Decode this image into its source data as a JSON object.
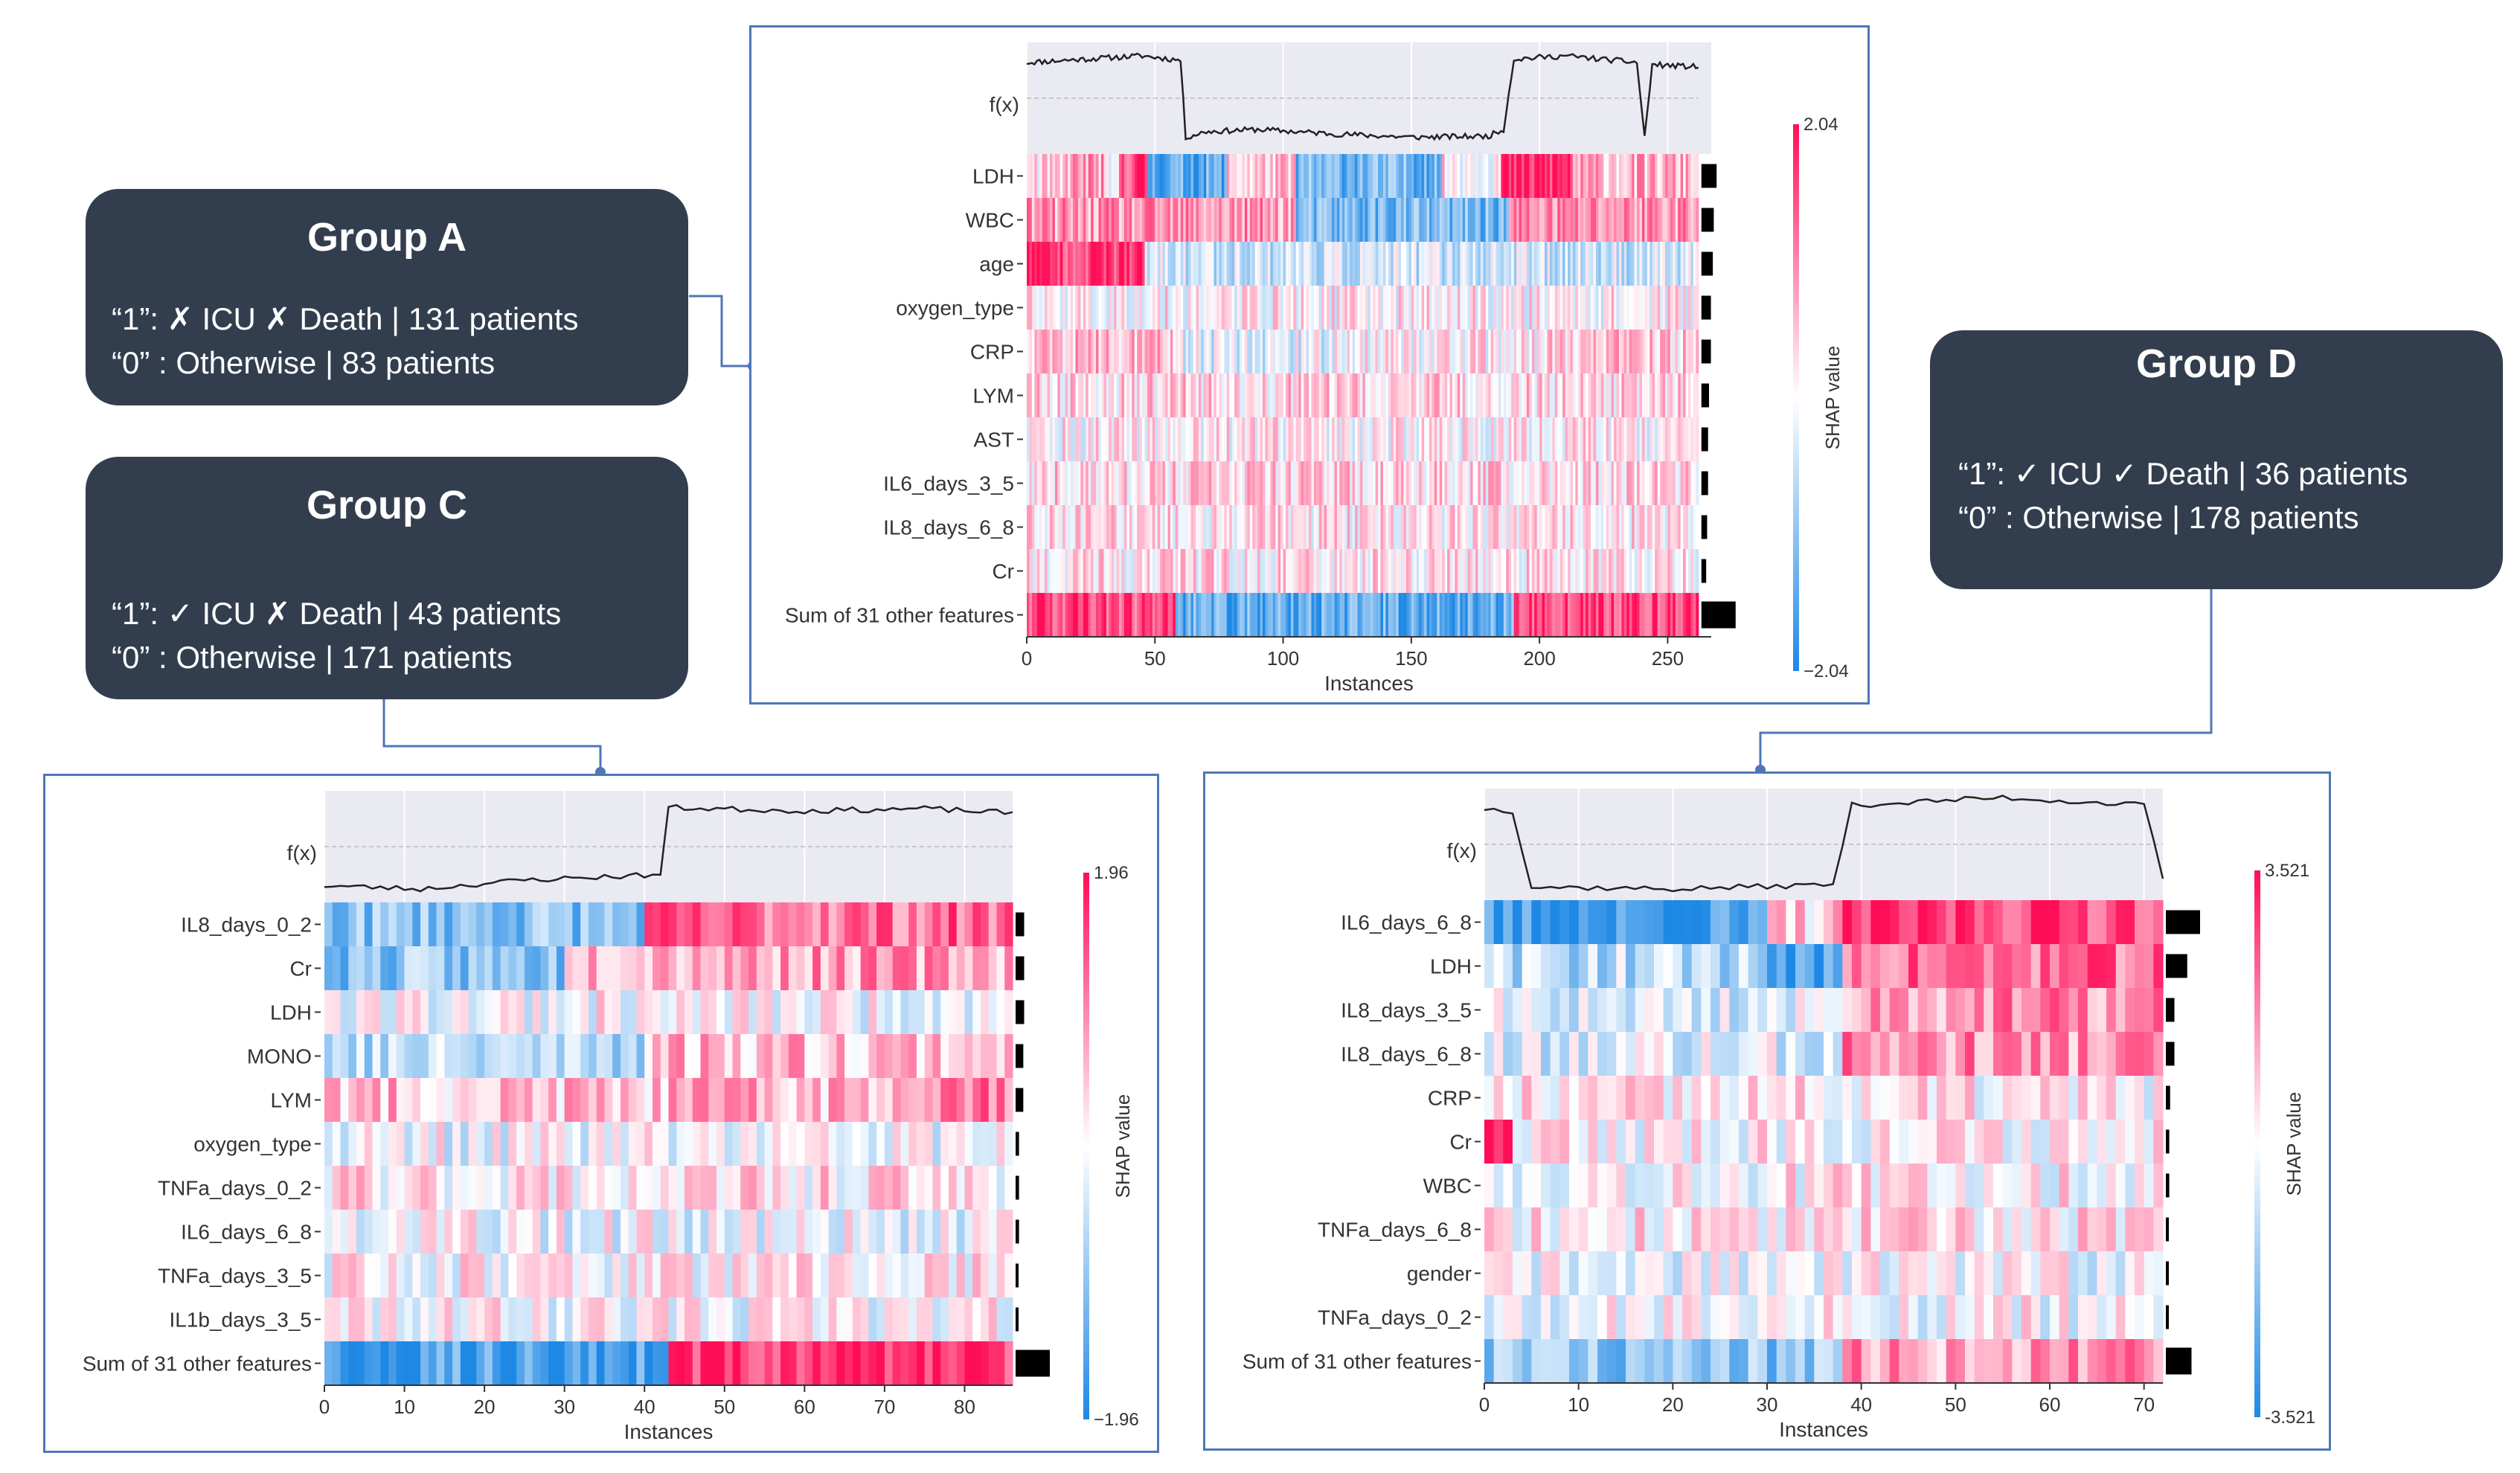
{
  "groups": {
    "a": {
      "title": "Group A",
      "line1": "“1”: ✗ ICU ✗ Death | 131 patients",
      "line2": "“0” : Otherwise | 83 patients"
    },
    "c": {
      "title": "Group C",
      "line1": "“1”: ✓ ICU ✗ Death | 43 patients",
      "line2": "“0” : Otherwise | 171 patients"
    },
    "d": {
      "title": "Group D",
      "line1": "“1”: ✓ ICU ✓ Death | 36 patients",
      "line2": "“0” : Otherwise | 178 patients"
    }
  },
  "colors": {
    "card_bg": "#323e4e",
    "border": "#4f76b7",
    "pos": "#ff0d57",
    "neg": "#1e88e5"
  },
  "chart_data": [
    {
      "id": "group-a-heatmap",
      "type": "heatmap",
      "fx_label": "f(x)",
      "features": [
        "LDH",
        "WBC",
        "age",
        "oxygen_type",
        "CRP",
        "LYM",
        "AST",
        "IL6_days_3_5",
        "IL8_days_6_8",
        "Cr",
        "Sum of 31 other features"
      ],
      "importance": [
        0.16,
        0.13,
        0.12,
        0.1,
        0.1,
        0.08,
        0.07,
        0.07,
        0.06,
        0.05,
        0.36
      ],
      "n_instances": 262,
      "xticks": [
        0,
        50,
        100,
        150,
        200,
        250
      ],
      "xlabel": "Instances",
      "colorbar": {
        "max_label": "2.04",
        "min_label": "−2.04",
        "label": "SHAP value",
        "max": 2.04,
        "min": -2.04
      },
      "fx_profile": [
        [
          0,
          0.82
        ],
        [
          45,
          0.88
        ],
        [
          60,
          0.84
        ],
        [
          62,
          0.15
        ],
        [
          70,
          0.2
        ],
        [
          90,
          0.22
        ],
        [
          120,
          0.18
        ],
        [
          150,
          0.15
        ],
        [
          180,
          0.16
        ],
        [
          186,
          0.22
        ],
        [
          190,
          0.85
        ],
        [
          210,
          0.88
        ],
        [
          238,
          0.82
        ],
        [
          241,
          0.15
        ],
        [
          244,
          0.8
        ],
        [
          262,
          0.78
        ]
      ],
      "seed": 11,
      "row_patterns": [
        [
          [
            0,
            15,
            0.1
          ],
          [
            15,
            30,
            0.4
          ],
          [
            30,
            36,
            -0.2
          ],
          [
            36,
            47,
            0.8
          ],
          [
            47,
            78,
            -0.7
          ],
          [
            78,
            105,
            0.2
          ],
          [
            105,
            162,
            -0.6
          ],
          [
            162,
            185,
            0.1
          ],
          [
            185,
            213,
            0.85
          ],
          [
            213,
            262,
            0.3
          ]
        ],
        [
          [
            0,
            48,
            0.4
          ],
          [
            48,
            105,
            0.4
          ],
          [
            105,
            188,
            -0.6
          ],
          [
            188,
            262,
            0.45
          ]
        ],
        [
          [
            0,
            46,
            0.85
          ],
          [
            46,
            262,
            -0.2
          ]
        ],
        [
          [
            0,
            262,
            0.05
          ]
        ],
        [
          [
            0,
            60,
            0.25
          ],
          [
            60,
            120,
            -0.1
          ],
          [
            120,
            200,
            0.05
          ],
          [
            200,
            262,
            0.2
          ]
        ],
        [
          [
            0,
            262,
            0.15
          ]
        ],
        [
          [
            0,
            262,
            0.05
          ]
        ],
        [
          [
            0,
            262,
            0.15
          ]
        ],
        [
          [
            0,
            262,
            0.1
          ]
        ],
        [
          [
            0,
            262,
            0.1
          ]
        ],
        [
          [
            0,
            58,
            0.75
          ],
          [
            58,
            190,
            -0.7
          ],
          [
            190,
            262,
            0.8
          ]
        ]
      ]
    },
    {
      "id": "group-c-heatmap",
      "type": "heatmap",
      "fx_label": "f(x)",
      "features": [
        "IL8_days_0_2",
        "Cr",
        "LDH",
        "MONO",
        "LYM",
        "oxygen_type",
        "TNFa_days_0_2",
        "IL6_days_6_8",
        "TNFa_days_3_5",
        "IL1b_days_3_5",
        "Sum of 31 other features"
      ],
      "importance": [
        0.1,
        0.1,
        0.1,
        0.09,
        0.09,
        0.04,
        0.04,
        0.04,
        0.03,
        0.03,
        0.4
      ],
      "n_instances": 86,
      "xticks": [
        0,
        10,
        20,
        30,
        40,
        50,
        60,
        70,
        80
      ],
      "xlabel": "Instances",
      "colorbar": {
        "max_label": "1.96",
        "min_label": "−1.96",
        "label": "SHAP value",
        "max": 1.96,
        "min": -1.96
      },
      "fx_profile": [
        [
          0,
          0.15
        ],
        [
          12,
          0.12
        ],
        [
          25,
          0.2
        ],
        [
          42,
          0.25
        ],
        [
          43,
          0.85
        ],
        [
          60,
          0.82
        ],
        [
          75,
          0.84
        ],
        [
          86,
          0.8
        ]
      ],
      "seed": 23,
      "row_patterns": [
        [
          [
            0,
            40,
            -0.5
          ],
          [
            40,
            86,
            0.6
          ]
        ],
        [
          [
            0,
            30,
            -0.5
          ],
          [
            30,
            86,
            0.4
          ]
        ],
        [
          [
            0,
            86,
            0.0
          ]
        ],
        [
          [
            0,
            40,
            -0.3
          ],
          [
            40,
            86,
            0.3
          ]
        ],
        [
          [
            0,
            45,
            0.25
          ],
          [
            45,
            72,
            0.3
          ],
          [
            72,
            86,
            0.6
          ]
        ],
        [
          [
            0,
            86,
            -0.05
          ]
        ],
        [
          [
            0,
            86,
            0.1
          ]
        ],
        [
          [
            0,
            86,
            -0.05
          ]
        ],
        [
          [
            0,
            86,
            0.05
          ]
        ],
        [
          [
            0,
            86,
            0.0
          ]
        ],
        [
          [
            0,
            43,
            -0.8
          ],
          [
            43,
            86,
            0.85
          ]
        ]
      ]
    },
    {
      "id": "group-d-heatmap",
      "type": "heatmap",
      "fx_label": "f(x)",
      "features": [
        "IL6_days_6_8",
        "LDH",
        "IL8_days_3_5",
        "IL8_days_6_8",
        "CRP",
        "Cr",
        "WBC",
        "TNFa_days_6_8",
        "gender",
        "TNFa_days_0_2",
        "Sum of 31 other features"
      ],
      "importance": [
        0.4,
        0.25,
        0.1,
        0.1,
        0.05,
        0.04,
        0.04,
        0.03,
        0.03,
        0.03,
        0.3
      ],
      "n_instances": 72,
      "xticks": [
        0,
        10,
        20,
        30,
        40,
        50,
        60,
        70
      ],
      "xlabel": "Instances",
      "colorbar": {
        "max_label": "3.521",
        "min_label": "-3.521",
        "label": "SHAP value",
        "max": 3.521,
        "min": -3.521
      },
      "fx_profile": [
        [
          0,
          0.82
        ],
        [
          3,
          0.8
        ],
        [
          5,
          0.12
        ],
        [
          20,
          0.1
        ],
        [
          37,
          0.14
        ],
        [
          39,
          0.85
        ],
        [
          55,
          0.92
        ],
        [
          70,
          0.85
        ],
        [
          72,
          0.2
        ]
      ],
      "seed": 37,
      "row_patterns": [
        [
          [
            0,
            30,
            -0.85
          ],
          [
            30,
            38,
            0.2
          ],
          [
            38,
            72,
            0.8
          ]
        ],
        [
          [
            0,
            30,
            -0.3
          ],
          [
            30,
            38,
            -0.85
          ],
          [
            38,
            72,
            0.6
          ]
        ],
        [
          [
            0,
            38,
            -0.15
          ],
          [
            38,
            72,
            0.45
          ]
        ],
        [
          [
            0,
            38,
            -0.15
          ],
          [
            38,
            72,
            0.45
          ]
        ],
        [
          [
            0,
            72,
            0.05
          ]
        ],
        [
          [
            0,
            3,
            0.8
          ],
          [
            3,
            72,
            0.05
          ]
        ],
        [
          [
            0,
            72,
            0.05
          ]
        ],
        [
          [
            0,
            72,
            0.08
          ]
        ],
        [
          [
            0,
            72,
            -0.05
          ]
        ],
        [
          [
            0,
            72,
            0.0
          ]
        ],
        [
          [
            0,
            38,
            -0.5
          ],
          [
            38,
            72,
            0.4
          ]
        ]
      ]
    }
  ]
}
